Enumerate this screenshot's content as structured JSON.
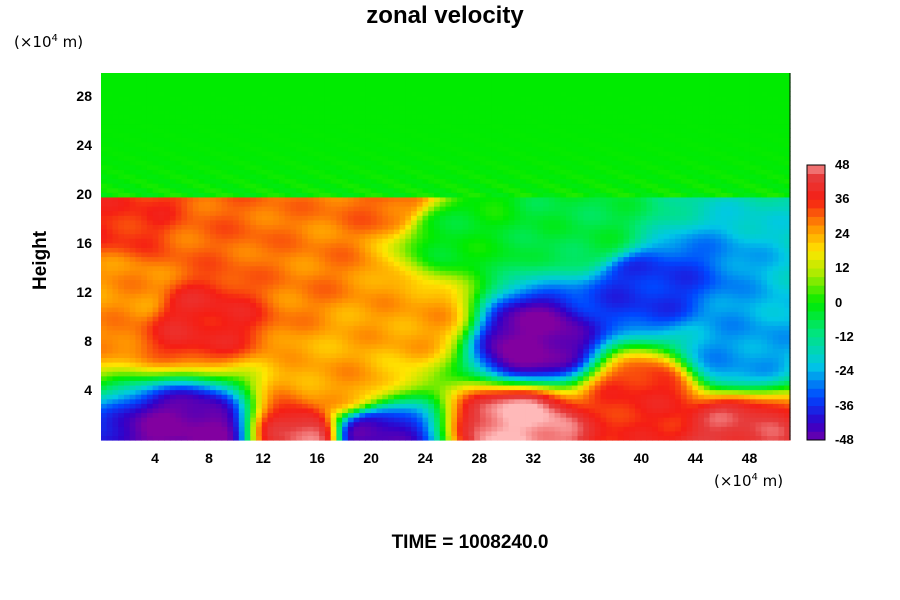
{
  "chart_data": {
    "type": "heatmap",
    "title": "zonal velocity",
    "ylabel": "Height",
    "y_unit": "(×10",
    "x_unit": "(×10",
    "unit_exp": "4",
    "unit_suffix": " m)",
    "xlim": [
      0,
      51
    ],
    "ylim": [
      0,
      30
    ],
    "x_ticks": [
      "4",
      "8",
      "12",
      "16",
      "20",
      "24",
      "28",
      "32",
      "36",
      "40",
      "44",
      "48"
    ],
    "y_ticks": [
      "4",
      "8",
      "12",
      "16",
      "20",
      "24",
      "28"
    ],
    "colorbar": {
      "min": -48,
      "max": 48,
      "ticks": [
        "48",
        "36",
        "24",
        "12",
        "0",
        "-12",
        "-24",
        "-36",
        "-48"
      ]
    },
    "upper_layer_value": 0,
    "tropopause_height": 20,
    "features": [
      {
        "x": 7,
        "y": 10,
        "value": 38
      },
      {
        "x": 2,
        "y": 12,
        "value": 26
      },
      {
        "x": 2,
        "y": 18.5,
        "value": 35
      },
      {
        "x": 8,
        "y": 16.5,
        "value": 30
      },
      {
        "x": 16,
        "y": 14,
        "value": 28
      },
      {
        "x": 21,
        "y": 19.5,
        "value": 30
      },
      {
        "x": 23,
        "y": 10,
        "value": 25
      },
      {
        "x": 18,
        "y": 4.5,
        "value": 25
      },
      {
        "x": 32,
        "y": 8,
        "value": -50
      },
      {
        "x": 40,
        "y": 12.5,
        "value": -36
      },
      {
        "x": 47,
        "y": 7,
        "value": -26
      },
      {
        "x": 31,
        "y": 1.2,
        "value": 50
      },
      {
        "x": 40.5,
        "y": 3.5,
        "value": 36
      },
      {
        "x": 47,
        "y": 0.8,
        "value": 44
      },
      {
        "x": 7,
        "y": 0.5,
        "value": -50
      },
      {
        "x": 20,
        "y": 0.3,
        "value": -45
      },
      {
        "x": 15,
        "y": 0.3,
        "value": 45
      },
      {
        "x": 26,
        "y": 17,
        "value": -2
      },
      {
        "x": 36,
        "y": 17,
        "value": -5
      }
    ]
  },
  "time_label": "TIME = 1008240.0"
}
